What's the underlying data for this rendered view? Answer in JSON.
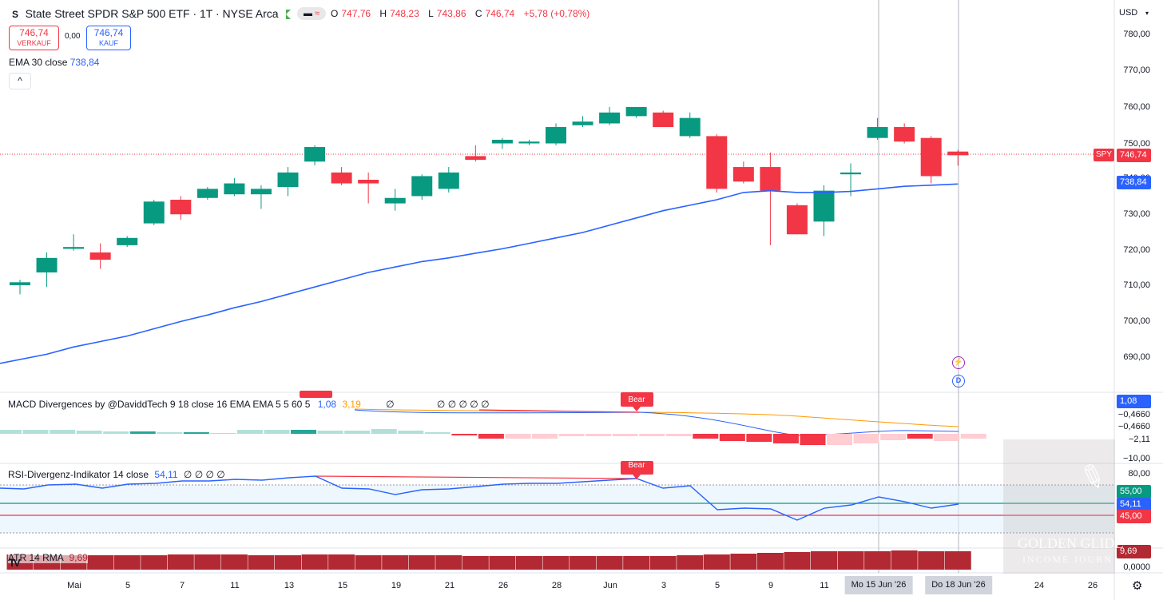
{
  "header": {
    "logo_letter": "S",
    "title": "State Street SPDR S&P 500 ETF · 1T · NYSE Arca",
    "ohlc": {
      "o_label": "O",
      "o": "747,76",
      "h_label": "H",
      "h": "748,23",
      "l_label": "L",
      "l": "743,86",
      "c_label": "C",
      "c": "746,74",
      "change": "+5,78 (+0,78%)"
    }
  },
  "trade": {
    "sell_price": "746,74",
    "sell_label": "VERKAUF",
    "spread": "0,00",
    "buy_price": "746,74",
    "buy_label": "KAUF"
  },
  "ema": {
    "label": "EMA 30 close",
    "value": "738,84"
  },
  "currency": "USD",
  "price_axis": [
    "780,00",
    "770,00",
    "760,00",
    "750,00",
    "740,00",
    "730,00",
    "720,00",
    "710,00",
    "700,00",
    "690,00"
  ],
  "tags": {
    "symbol": "SPY",
    "last": "746,74",
    "ema": "738,84",
    "macd_blue": "1,08",
    "macd_1": "−0,4660",
    "macd_2": "−0,4660",
    "macd_hist": "−2,11",
    "macd_low": "−10,00",
    "rsi_upper": "55,00",
    "rsi_value": "54,11",
    "rsi_lower": "45,00",
    "rsi_top": "80,00",
    "atr": "9,69",
    "atr_zero": "0,0000"
  },
  "macd": {
    "title": "MACD Divergences by @DaviddTech 9 18 close 16 EMA EMA 5 5 60 5",
    "v1": "1,08",
    "v2": "3,19",
    "v3": "∅",
    "v4": "∅ ∅ ∅ ∅ ∅",
    "bear": "Bear"
  },
  "rsi": {
    "title": "RSI-Divergenz-Indikator 14 close",
    "value": "54,11",
    "extra": "∅ ∅ ∅ ∅",
    "bear": "Bear"
  },
  "atr": {
    "title": "ATR 14 RMA",
    "value": "9,69"
  },
  "time_axis": {
    "labels": [
      "Mai",
      "5",
      "7",
      "11",
      "13",
      "15",
      "19",
      "21",
      "26",
      "28",
      "Jun",
      "3",
      "5",
      "9",
      "11",
      "24",
      "26"
    ],
    "highlight_1": "Mo 15 Jun '26",
    "highlight_2": "Do 18 Jun '26"
  },
  "watermark": {
    "line1": "GOLDEN GLIDE",
    "line2": "INCOME JOURN"
  },
  "icons": [
    "flag-icon",
    "collapse-chevron-icon",
    "lightning-icon",
    "dividend-icon",
    "settings-gear-icon",
    "tradingview-logo-icon"
  ],
  "colors": {
    "up": "#089981",
    "down": "#f23645",
    "ema": "#2962ff",
    "macd_signal": "#ff9800",
    "atr": "#b22833"
  },
  "chart_data": {
    "type": "candlestick",
    "x_axis_dates": [
      "Mai",
      "5",
      "7",
      "11",
      "13",
      "15",
      "19",
      "21",
      "26",
      "28",
      "Jun",
      "3",
      "5",
      "9",
      "11",
      "Mo 15 Jun '26",
      "Do 18 Jun '26",
      "24",
      "26"
    ],
    "y_range": [
      685,
      785
    ],
    "candles": [
      {
        "o": 711.0,
        "h": 712.5,
        "l": 708.5,
        "c": 711.8
      },
      {
        "o": 714.5,
        "h": 720.0,
        "l": 710.5,
        "c": 718.5
      },
      {
        "o": 721.0,
        "h": 725.0,
        "l": 720.5,
        "c": 721.5
      },
      {
        "o": 720.0,
        "h": 722.5,
        "l": 715.5,
        "c": 718.0
      },
      {
        "o": 722.0,
        "h": 724.5,
        "l": 721.5,
        "c": 724.0
      },
      {
        "o": 728.0,
        "h": 734.5,
        "l": 727.5,
        "c": 734.0
      },
      {
        "o": 734.5,
        "h": 735.5,
        "l": 729.0,
        "c": 730.5
      },
      {
        "o": 735.0,
        "h": 738.0,
        "l": 734.5,
        "c": 737.5
      },
      {
        "o": 736.0,
        "h": 740.5,
        "l": 735.5,
        "c": 739.0
      },
      {
        "o": 736.0,
        "h": 738.5,
        "l": 732.0,
        "c": 737.5
      },
      {
        "o": 738.0,
        "h": 743.5,
        "l": 735.5,
        "c": 742.0
      },
      {
        "o": 745.0,
        "h": 749.5,
        "l": 744.0,
        "c": 749.0
      },
      {
        "o": 742.0,
        "h": 743.5,
        "l": 738.5,
        "c": 739.0
      },
      {
        "o": 740.0,
        "h": 742.0,
        "l": 733.5,
        "c": 739.0
      },
      {
        "o": 733.5,
        "h": 737.5,
        "l": 731.5,
        "c": 735.0
      },
      {
        "o": 735.5,
        "h": 741.5,
        "l": 734.5,
        "c": 741.0
      },
      {
        "o": 737.5,
        "h": 743.5,
        "l": 736.5,
        "c": 742.0
      },
      {
        "o": 746.5,
        "h": 749.5,
        "l": 745.0,
        "c": 745.5
      },
      {
        "o": 750.0,
        "h": 751.5,
        "l": 748.5,
        "c": 751.0
      },
      {
        "o": 750.0,
        "h": 751.0,
        "l": 749.5,
        "c": 750.5
      },
      {
        "o": 750.0,
        "h": 755.5,
        "l": 749.5,
        "c": 754.5
      },
      {
        "o": 755.0,
        "h": 757.5,
        "l": 754.5,
        "c": 756.0
      },
      {
        "o": 755.5,
        "h": 760.0,
        "l": 755.0,
        "c": 758.5
      },
      {
        "o": 757.5,
        "h": 760.0,
        "l": 757.0,
        "c": 760.0
      },
      {
        "o": 758.5,
        "h": 759.0,
        "l": 754.5,
        "c": 754.5
      },
      {
        "o": 752.0,
        "h": 758.5,
        "l": 751.5,
        "c": 757.0
      },
      {
        "o": 752.0,
        "h": 752.5,
        "l": 736.5,
        "c": 737.5
      },
      {
        "o": 743.5,
        "h": 745.0,
        "l": 739.0,
        "c": 739.5
      },
      {
        "o": 743.5,
        "h": 747.5,
        "l": 722.0,
        "c": 737.0
      },
      {
        "o": 733.0,
        "h": 733.5,
        "l": 725.0,
        "c": 725.0
      },
      {
        "o": 728.5,
        "h": 738.5,
        "l": 724.5,
        "c": 737.0
      },
      {
        "o": 741.5,
        "h": 744.5,
        "l": 735.5,
        "c": 742.0
      },
      {
        "o": 751.5,
        "h": 757.0,
        "l": 751.0,
        "c": 754.5
      },
      {
        "o": 754.5,
        "h": 755.5,
        "l": 750.0,
        "c": 750.5
      },
      {
        "o": 751.5,
        "h": 752.0,
        "l": 739.0,
        "c": 741.0
      },
      {
        "o": 747.76,
        "h": 748.23,
        "l": 743.86,
        "c": 746.74
      }
    ],
    "ema30": [
      689.5,
      692.0,
      694.0,
      695.5,
      697.0,
      699.0,
      701.0,
      702.8,
      704.8,
      706.5,
      708.5,
      710.5,
      712.5,
      714.5,
      716.0,
      717.5,
      718.5,
      719.8,
      721.0,
      722.5,
      724.0,
      725.5,
      727.5,
      729.5,
      731.5,
      733.0,
      734.5,
      736.5,
      737.0,
      736.5,
      736.5,
      736.8,
      737.5,
      738.2,
      738.5,
      738.84
    ]
  }
}
